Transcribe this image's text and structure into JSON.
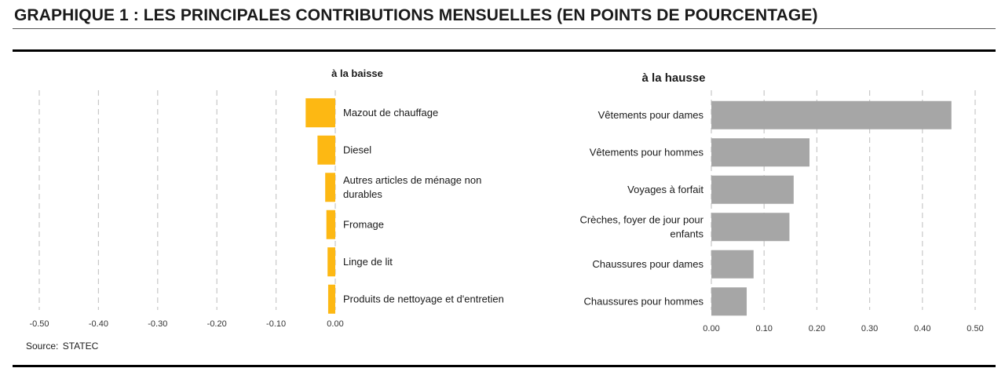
{
  "page": {
    "title": "GRAPHIQUE 1 : LES PRINCIPALES CONTRIBUTIONS MENSUELLES (EN POINTS DE POURCENTAGE)",
    "source": "Source:  STATEC"
  },
  "chart_data": [
    {
      "type": "bar",
      "orientation": "horizontal",
      "title": "à la baisse",
      "categories": [
        "Mazout de chauffage",
        "Diesel",
        "Autres articles de ménage non durables",
        "Fromage",
        "Linge de lit",
        "Produits de nettoyage et d'entretien"
      ],
      "values": [
        -0.05,
        -0.03,
        -0.017,
        -0.015,
        -0.013,
        -0.012
      ],
      "xlim": [
        -0.5,
        0.0
      ],
      "ticks": [
        "-0.50",
        "-0.40",
        "-0.30",
        "-0.20",
        "-0.10",
        "0.00"
      ],
      "grid": true,
      "color": "#FDB813"
    },
    {
      "type": "bar",
      "orientation": "horizontal",
      "title": "à la hausse",
      "categories": [
        "Vêtements pour dames",
        "Vêtements pour hommes",
        "Voyages à forfait",
        "Crèches, foyer de jour pour enfants",
        "Chaussures pour dames",
        "Chaussures pour hommes"
      ],
      "values": [
        0.455,
        0.186,
        0.156,
        0.148,
        0.08,
        0.067
      ],
      "xlim": [
        0.0,
        0.5
      ],
      "ticks": [
        "0.00",
        "0.10",
        "0.20",
        "0.30",
        "0.40",
        "0.50"
      ],
      "grid": true,
      "color": "#A6A6A6"
    }
  ]
}
